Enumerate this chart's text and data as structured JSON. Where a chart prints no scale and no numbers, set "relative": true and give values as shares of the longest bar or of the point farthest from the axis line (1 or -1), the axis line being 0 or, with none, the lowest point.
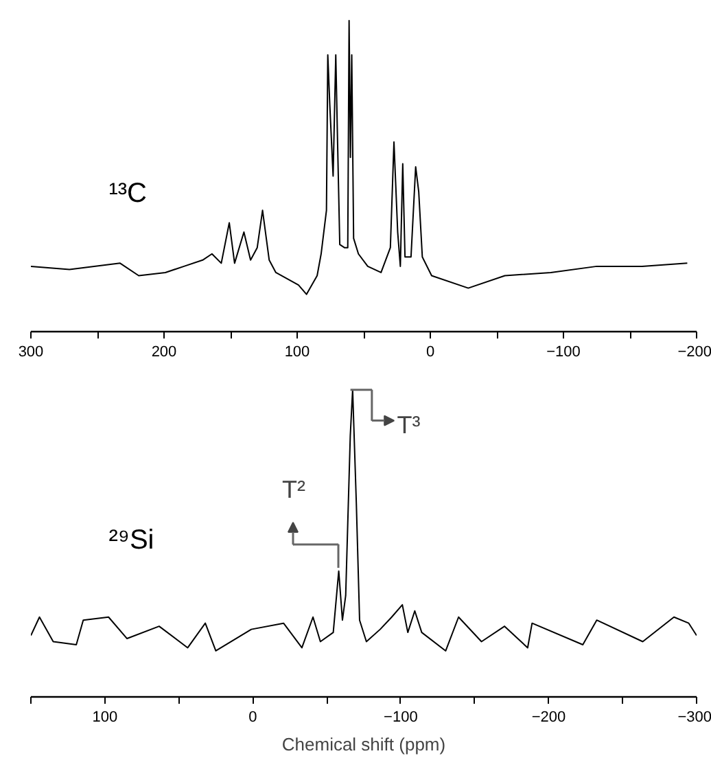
{
  "chart_data": [
    {
      "type": "line",
      "relative": true,
      "xlim": [
        300,
        -200
      ],
      "xticks": [
        300,
        {
          "value": 250,
          "label": null
        },
        200,
        {
          "value": 150,
          "label": null
        },
        100,
        {
          "value": 50,
          "label": null
        },
        0,
        {
          "value": -50,
          "label": null
        },
        -100,
        {
          "value": -150,
          "label": null
        },
        -200
      ],
      "tick_labels": "x",
      "grid": false,
      "line_style": "solid",
      "series": [
        {
          "name": "¹³C",
          "color": "#000000",
          "x": [
            300,
            271,
            233,
            219,
            199,
            185,
            171,
            164,
            157,
            151,
            147,
            140,
            135,
            130,
            126,
            121,
            116,
            99,
            93,
            85,
            82,
            78,
            77,
            75.5,
            73,
            71,
            69.6,
            68,
            64.5,
            62,
            61,
            60,
            59,
            57.6,
            54,
            47,
            37,
            30,
            27.3,
            24.5,
            22.5,
            20.7,
            19,
            14.5,
            11,
            8.7,
            6,
            -1,
            -28.5,
            -56,
            -90.5,
            -125,
            -159,
            -193
          ],
          "values": [
            0.21,
            0.2,
            0.22,
            0.18,
            0.19,
            0.21,
            0.23,
            0.25,
            0.22,
            0.35,
            0.22,
            0.32,
            0.23,
            0.27,
            0.39,
            0.23,
            0.19,
            0.15,
            0.12,
            0.18,
            0.25,
            0.39,
            0.89,
            0.73,
            0.5,
            0.89,
            0.6,
            0.28,
            0.27,
            0.27,
            1,
            0.56,
            0.89,
            0.3,
            0.25,
            0.21,
            0.19,
            0.27,
            0.61,
            0.32,
            0.21,
            0.54,
            0.24,
            0.24,
            0.53,
            0.45,
            0.24,
            0.18,
            0.14,
            0.18,
            0.19,
            0.21,
            0.21,
            0.22
          ]
        }
      ]
    },
    {
      "type": "line",
      "relative": true,
      "xlim": [
        150,
        -300
      ],
      "xticks": [
        {
          "value": 150,
          "label": null
        },
        100,
        {
          "value": 50,
          "label": null
        },
        0,
        {
          "value": -50,
          "label": null
        },
        -100,
        {
          "value": -150,
          "label": null
        },
        -200,
        {
          "value": -250,
          "label": null
        },
        -300
      ],
      "tick_labels": "x",
      "grid": false,
      "line_style": "solid",
      "xlabel": "Chemical shift (ppm)",
      "annotations": [
        {
          "text": "T³",
          "x": -67.5,
          "y": 1
        },
        "T²"
      ],
      "series": [
        {
          "name": "²⁹Si",
          "color": "#000000",
          "x": [
            150,
            144.2,
            134.9,
            119.3,
            114.6,
            97.5,
            85,
            63.3,
            44,
            32.1,
            25,
            1,
            -20.8,
            -33.2,
            -40.7,
            -45.7,
            -54.4,
            -58.1,
            -60.6,
            -62.8,
            -65.9,
            -67.5,
            -70,
            -72.2,
            -76.8,
            -86.1,
            -93.9,
            -101.1,
            -104.8,
            -109.5,
            -114.2,
            -130.4,
            -139.1,
            -154.6,
            -170.2,
            -185.8,
            -188.8,
            -223.1,
            -232.5,
            -263.6,
            -284.7,
            -294.7,
            -300
          ],
          "values": [
            0.2,
            0.26,
            0.18,
            0.17,
            0.25,
            0.26,
            0.19,
            0.23,
            0.16,
            0.24,
            0.15,
            0.22,
            0.24,
            0.16,
            0.26,
            0.18,
            0.21,
            0.41,
            0.25,
            0.33,
            0.85,
            1,
            0.63,
            0.25,
            0.18,
            0.22,
            0.26,
            0.3,
            0.21,
            0.28,
            0.21,
            0.15,
            0.26,
            0.18,
            0.23,
            0.16,
            0.24,
            0.17,
            0.25,
            0.18,
            0.26,
            0.24,
            0.2
          ]
        }
      ]
    }
  ]
}
